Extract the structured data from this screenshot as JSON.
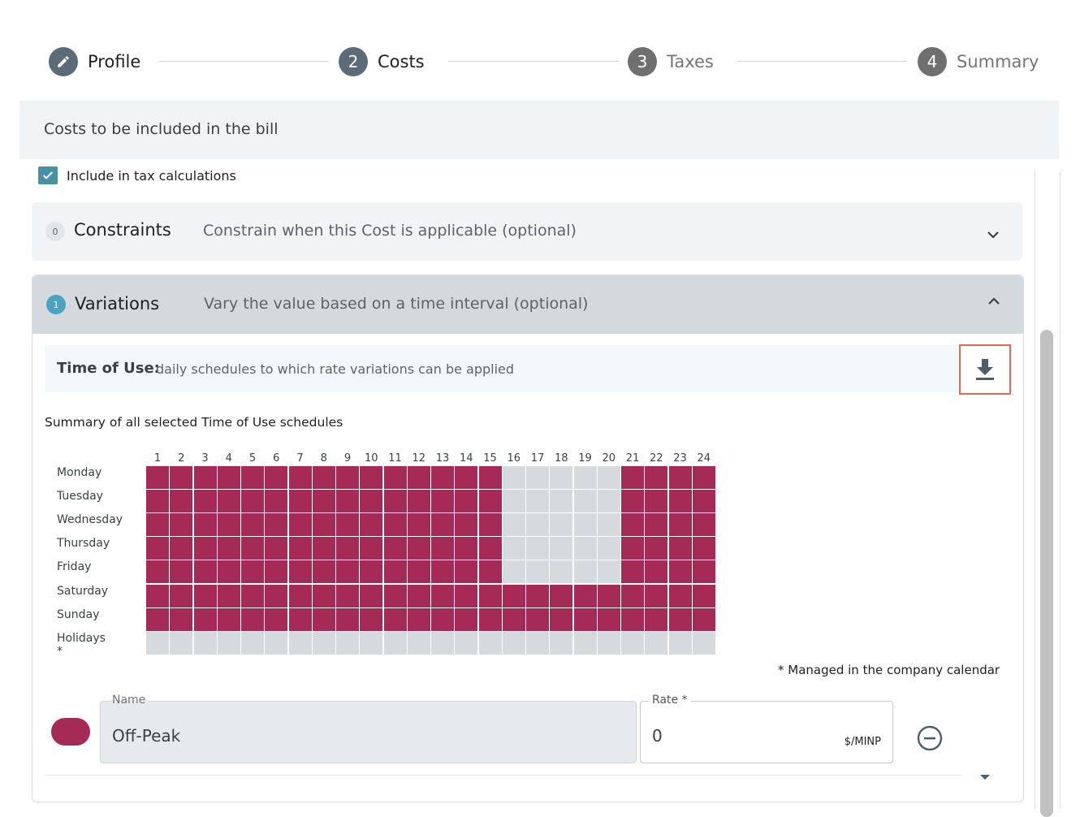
{
  "stepper": {
    "steps": [
      {
        "number": "",
        "label": "Profile",
        "icon": "pencil-icon"
      },
      {
        "number": "2",
        "label": "Costs"
      },
      {
        "number": "3",
        "label": "Taxes"
      },
      {
        "number": "4",
        "label": "Summary"
      }
    ]
  },
  "header": {
    "title": "Costs to be included in the bill"
  },
  "include_tax": {
    "label": "Include in tax calculations",
    "checked": true
  },
  "constraints": {
    "count": "0",
    "title": "Constraints",
    "description": "Constrain when this Cost is applicable (optional)"
  },
  "variations": {
    "count": "1",
    "title": "Variations",
    "description": "Vary the value based on a time interval (optional)",
    "tou_label": "Time of Use:",
    "tou_description": "daily schedules to which rate variations can be applied",
    "summary_title": "Summary of all selected Time of Use schedules",
    "footnote": "* Managed in the company calendar"
  },
  "schedule": {
    "hours": [
      "1",
      "2",
      "3",
      "4",
      "5",
      "6",
      "7",
      "8",
      "9",
      "10",
      "11",
      "12",
      "13",
      "14",
      "15",
      "16",
      "17",
      "18",
      "19",
      "20",
      "21",
      "22",
      "23",
      "24"
    ],
    "days": [
      {
        "label": "Monday",
        "active": [
          1,
          1,
          1,
          1,
          1,
          1,
          1,
          1,
          1,
          1,
          1,
          1,
          1,
          1,
          1,
          0,
          0,
          0,
          0,
          0,
          1,
          1,
          1,
          1
        ]
      },
      {
        "label": "Tuesday",
        "active": [
          1,
          1,
          1,
          1,
          1,
          1,
          1,
          1,
          1,
          1,
          1,
          1,
          1,
          1,
          1,
          0,
          0,
          0,
          0,
          0,
          1,
          1,
          1,
          1
        ]
      },
      {
        "label": "Wednesday",
        "active": [
          1,
          1,
          1,
          1,
          1,
          1,
          1,
          1,
          1,
          1,
          1,
          1,
          1,
          1,
          1,
          0,
          0,
          0,
          0,
          0,
          1,
          1,
          1,
          1
        ]
      },
      {
        "label": "Thursday",
        "active": [
          1,
          1,
          1,
          1,
          1,
          1,
          1,
          1,
          1,
          1,
          1,
          1,
          1,
          1,
          1,
          0,
          0,
          0,
          0,
          0,
          1,
          1,
          1,
          1
        ]
      },
      {
        "label": "Friday",
        "active": [
          1,
          1,
          1,
          1,
          1,
          1,
          1,
          1,
          1,
          1,
          1,
          1,
          1,
          1,
          1,
          0,
          0,
          0,
          0,
          0,
          1,
          1,
          1,
          1
        ]
      },
      {
        "label": "Saturday",
        "active": [
          1,
          1,
          1,
          1,
          1,
          1,
          1,
          1,
          1,
          1,
          1,
          1,
          1,
          1,
          1,
          1,
          1,
          1,
          1,
          1,
          1,
          1,
          1,
          1
        ]
      },
      {
        "label": "Sunday",
        "active": [
          1,
          1,
          1,
          1,
          1,
          1,
          1,
          1,
          1,
          1,
          1,
          1,
          1,
          1,
          1,
          1,
          1,
          1,
          1,
          1,
          1,
          1,
          1,
          1
        ]
      },
      {
        "label": "Holidays *",
        "active": [
          0,
          0,
          0,
          0,
          0,
          0,
          0,
          0,
          0,
          0,
          0,
          0,
          0,
          0,
          0,
          0,
          0,
          0,
          0,
          0,
          0,
          0,
          0,
          0
        ]
      }
    ],
    "on_color": "#a62a56",
    "off_color": "#d6dadd"
  },
  "rate_row": {
    "name_label": "Name",
    "name_value": "Off-Peak",
    "rate_label": "Rate *",
    "rate_value": "0",
    "unit": "$/MINP",
    "swatch_color": "#a62a56"
  }
}
